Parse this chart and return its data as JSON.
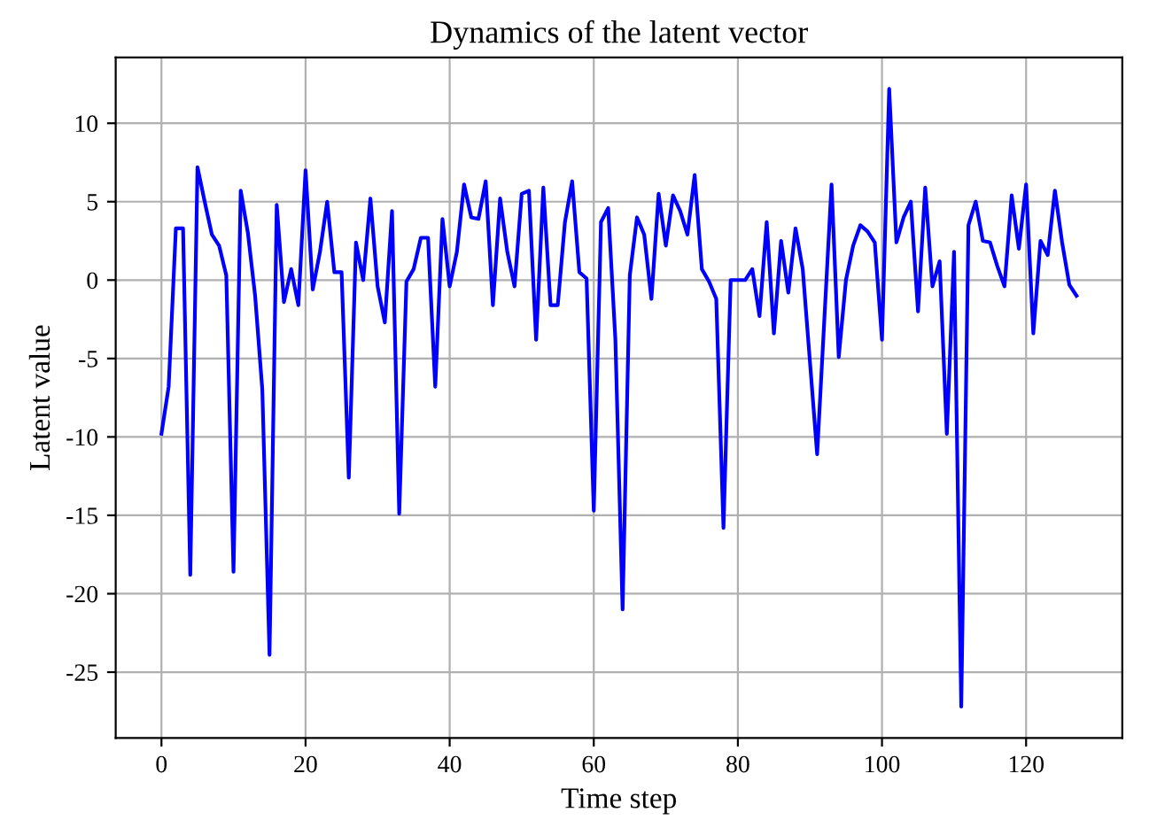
{
  "chart_data": {
    "type": "line",
    "title": "Dynamics of the latent vector",
    "xlabel": "Time step",
    "ylabel": "Latent value",
    "x": [
      0,
      1,
      2,
      3,
      4,
      5,
      6,
      7,
      8,
      9,
      10,
      11,
      12,
      13,
      14,
      15,
      16,
      17,
      18,
      19,
      20,
      21,
      22,
      23,
      24,
      25,
      26,
      27,
      28,
      29,
      30,
      31,
      32,
      33,
      34,
      35,
      36,
      37,
      38,
      39,
      40,
      41,
      42,
      43,
      44,
      45,
      46,
      47,
      48,
      49,
      50,
      51,
      52,
      53,
      54,
      55,
      56,
      57,
      58,
      59,
      60,
      61,
      62,
      63,
      64,
      65,
      66,
      67,
      68,
      69,
      70,
      71,
      72,
      73,
      74,
      75,
      76,
      77,
      78,
      79,
      80,
      81,
      82,
      83,
      84,
      85,
      86,
      87,
      88,
      89,
      90,
      91,
      92,
      93,
      94,
      95,
      96,
      97,
      98,
      99,
      100,
      101,
      102,
      103,
      104,
      105,
      106,
      107,
      108,
      109,
      110,
      111,
      112,
      113,
      114,
      115,
      116,
      117,
      118,
      119,
      120,
      121,
      122,
      123,
      124,
      125,
      126,
      127
    ],
    "series": [
      {
        "color": "#0000ff",
        "values": [
          -9.8,
          -6.8,
          3.3,
          3.3,
          -18.8,
          7.2,
          5,
          2.9,
          2.2,
          0.3,
          -18.6,
          5.7,
          3,
          -1,
          -7,
          -23.9,
          4.8,
          -1.4,
          0.7,
          -1.6,
          7,
          -0.6,
          1.8,
          5,
          0.5,
          0.5,
          -12.6,
          2.4,
          0,
          5.2,
          -0.4,
          -2.7,
          4.4,
          -14.9,
          -0.1,
          0.7,
          2.7,
          2.7,
          -6.8,
          3.9,
          -0.4,
          1.8,
          6.1,
          4,
          3.9,
          6.3,
          -1.6,
          5.2,
          1.8,
          -0.4,
          5.5,
          5.7,
          -3.8,
          5.9,
          -1.6,
          -1.6,
          3.7,
          6.3,
          0.5,
          0.1,
          -14.7,
          3.7,
          4.6,
          -3.8,
          -21,
          0.3,
          4,
          2.9,
          -1.2,
          5.5,
          2.2,
          5.4,
          4.4,
          2.9,
          6.7,
          0.7,
          -0.1,
          -1.2,
          -15.8,
          0,
          0,
          0,
          0.7,
          -2.3,
          3.7,
          -3.4,
          2.5,
          -0.8,
          3.3,
          0.7,
          -5.2,
          -11.1,
          -2.5,
          6.1,
          -4.9,
          0,
          2.2,
          3.5,
          3.1,
          2.4,
          -3.8,
          12.2,
          2.4,
          4,
          5,
          -2,
          5.9,
          -0.4,
          1.2,
          -9.8,
          1.8,
          -27.2,
          3.5,
          5,
          2.5,
          2.4,
          0.9,
          -0.4,
          5.4,
          2,
          6.1,
          -3.4,
          2.5,
          1.6,
          5.7,
          2.4,
          -0.3,
          -1
        ]
      }
    ],
    "xlim": [
      -6.35,
      133.35
    ],
    "ylim": [
      -29.2,
      14.2
    ],
    "xticks": [
      0,
      20,
      40,
      60,
      80,
      100,
      120
    ],
    "yticks": [
      -25,
      -20,
      -15,
      -10,
      -5,
      0,
      5,
      10
    ],
    "grid": true,
    "marker": "none",
    "line_style": "solid"
  }
}
